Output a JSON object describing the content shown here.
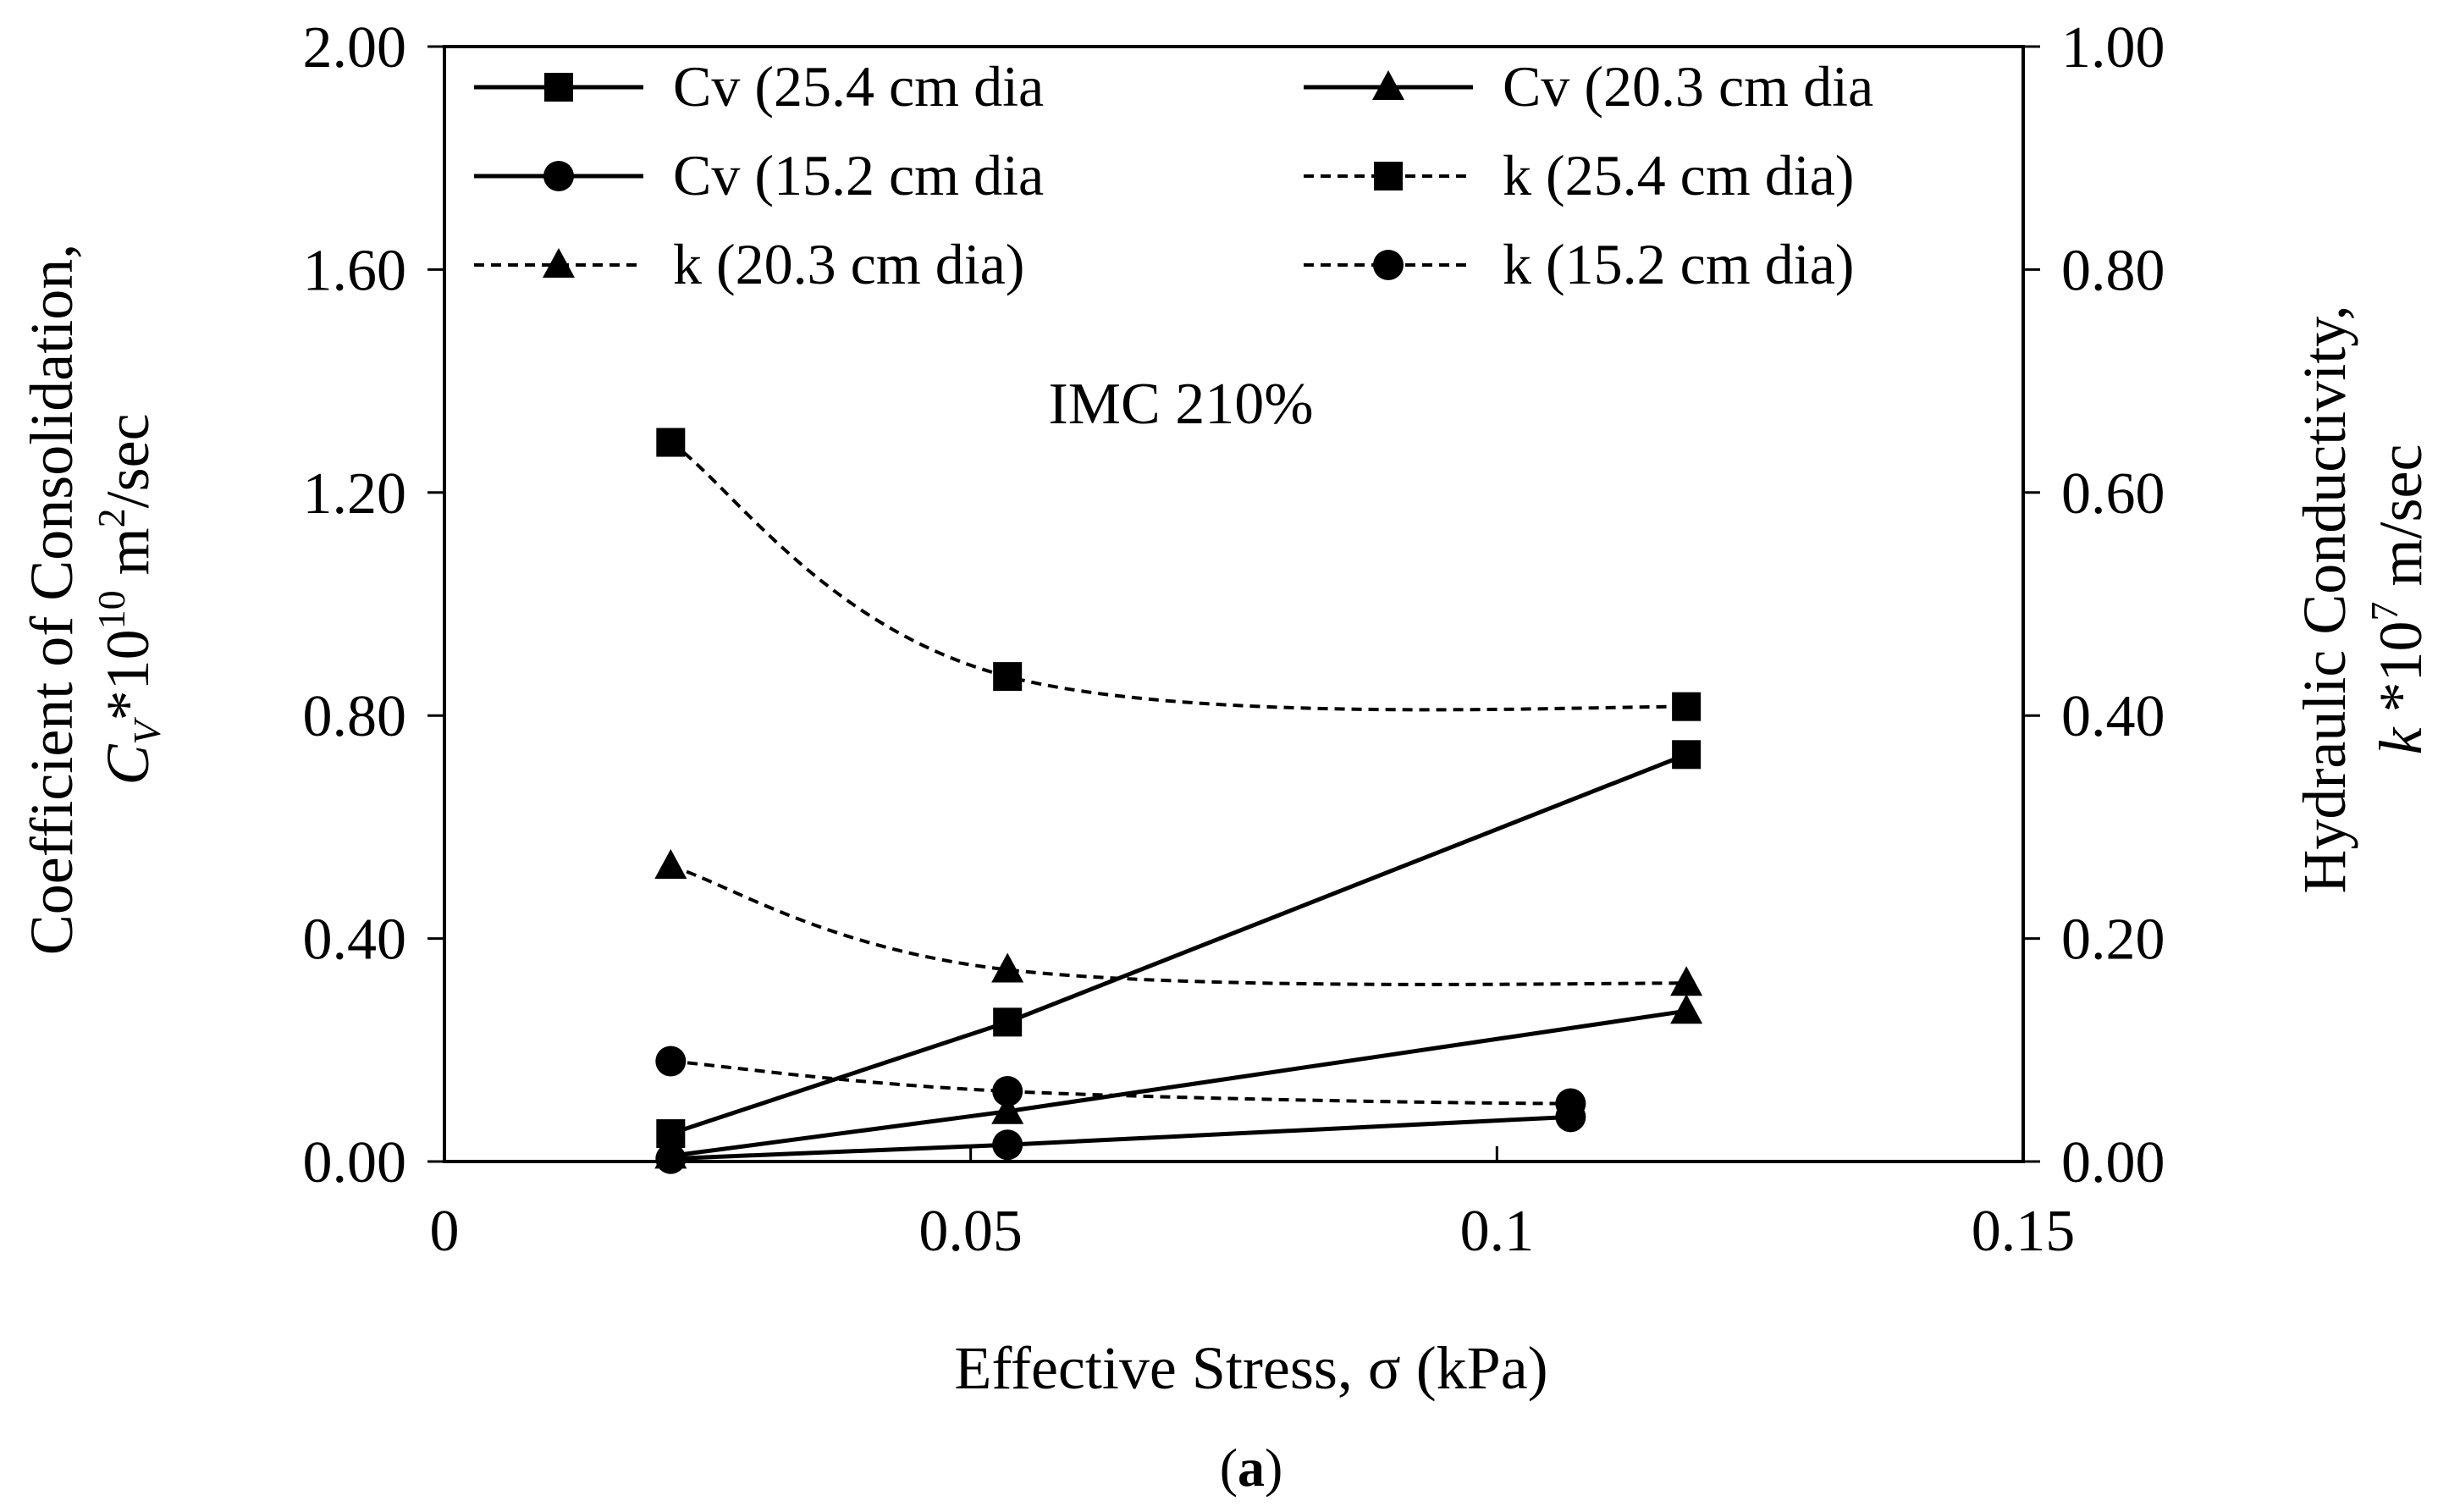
{
  "chart_data": {
    "type": "line",
    "annotation": "IMC 210%",
    "caption": {
      "open": "(",
      "letter": "a",
      "close": ")"
    },
    "x_axis": {
      "title": "Effective Stress, σ (kPa)",
      "range": [
        0,
        0.15
      ],
      "ticks": [
        0,
        0.05,
        0.1,
        0.15
      ],
      "tick_labels": [
        "0",
        "0.05",
        "0.1",
        "0.15"
      ]
    },
    "y_left": {
      "title_line1": "Coefficient of Consolidation,",
      "title_var": "C",
      "title_sub": "V",
      "title_mid": "*10",
      "title_sup": "10",
      "title_unit": " m",
      "title_unit_sup": "2",
      "title_end": "/sec",
      "range": [
        0,
        2.0
      ],
      "ticks": [
        0,
        0.4,
        0.8,
        1.2,
        1.6,
        2.0
      ],
      "tick_labels": [
        "0.00",
        "0.40",
        "0.80",
        "1.20",
        "1.60",
        "2.00"
      ]
    },
    "y_right": {
      "title_line1": "Hydraulic Conductivity,",
      "title_var": "k",
      "title_mid": " *10",
      "title_sup": "7",
      "title_end": " m/sec",
      "range": [
        0,
        1.0
      ],
      "ticks": [
        0,
        0.2,
        0.4,
        0.6,
        0.8,
        1.0
      ],
      "tick_labels": [
        "0.00",
        "0.20",
        "0.40",
        "0.60",
        "0.80",
        "1.00"
      ]
    },
    "series": [
      {
        "name": "Cv (25.4 cm dia",
        "axis": "left",
        "style": "solid",
        "marker": "square",
        "smooth": false,
        "x": [
          0.0215,
          0.0535,
          0.118
        ],
        "y": [
          0.05,
          0.25,
          0.73
        ]
      },
      {
        "name": "Cv (20.3 cm dia",
        "axis": "left",
        "style": "solid",
        "marker": "triangle",
        "smooth": false,
        "x": [
          0.0215,
          0.0535,
          0.118
        ],
        "y": [
          0.01,
          0.09,
          0.27
        ]
      },
      {
        "name": "Cv (15.2 cm dia",
        "axis": "left",
        "style": "solid",
        "marker": "circle",
        "smooth": false,
        "x": [
          0.0215,
          0.0535,
          0.107
        ],
        "y": [
          0.005,
          0.03,
          0.08
        ]
      },
      {
        "name": "k (25.4 cm dia)",
        "axis": "right",
        "style": "dashed",
        "marker": "square",
        "smooth": true,
        "x": [
          0.0215,
          0.0535,
          0.118
        ],
        "y": [
          0.645,
          0.435,
          0.408
        ]
      },
      {
        "name": "k (20.3 cm dia)",
        "axis": "right",
        "style": "dashed",
        "marker": "triangle",
        "smooth": true,
        "x": [
          0.0215,
          0.0535,
          0.118
        ],
        "y": [
          0.265,
          0.172,
          0.16
        ]
      },
      {
        "name": "k (15.2 cm dia)",
        "axis": "right",
        "style": "dashed",
        "marker": "circle",
        "smooth": true,
        "x": [
          0.0215,
          0.0535,
          0.107
        ],
        "y": [
          0.09,
          0.063,
          0.052
        ]
      }
    ],
    "legend": {
      "placement": "top",
      "columns": 2
    }
  }
}
